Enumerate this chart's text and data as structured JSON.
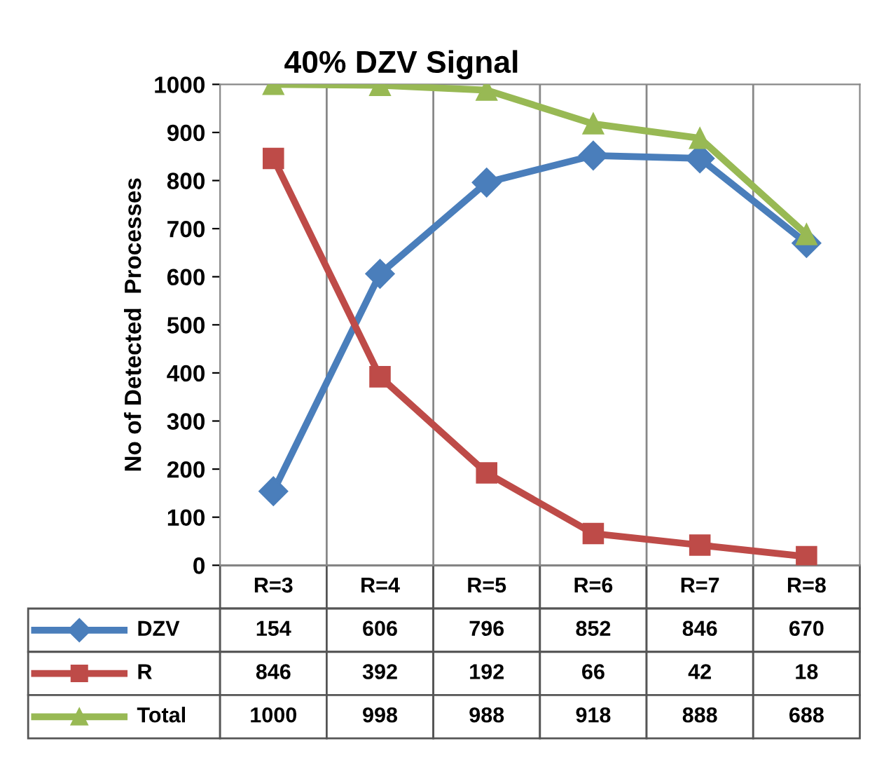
{
  "chart_data": {
    "type": "line",
    "title": "40% DZV Signal",
    "ylabel": "No of Detected  Processes",
    "categories": [
      "R=3",
      "R=4",
      "R=5",
      "R=6",
      "R=7",
      "R=8"
    ],
    "series": [
      {
        "name": "DZV",
        "color": "#4a7ebb",
        "marker": "diamond",
        "values": [
          154,
          606,
          796,
          852,
          846,
          670
        ]
      },
      {
        "name": "R",
        "color": "#be4b48",
        "marker": "square",
        "values": [
          846,
          392,
          192,
          66,
          42,
          18
        ]
      },
      {
        "name": "Total",
        "color": "#98b954",
        "marker": "triangle",
        "values": [
          1000,
          998,
          988,
          918,
          888,
          688
        ]
      }
    ],
    "ylim": [
      0,
      1000
    ],
    "yticks": [
      0,
      100,
      200,
      300,
      400,
      500,
      600,
      700,
      800,
      900,
      1000
    ],
    "grid": "x",
    "data_labels": true,
    "legend": "bottom",
    "line_style": "solid"
  }
}
